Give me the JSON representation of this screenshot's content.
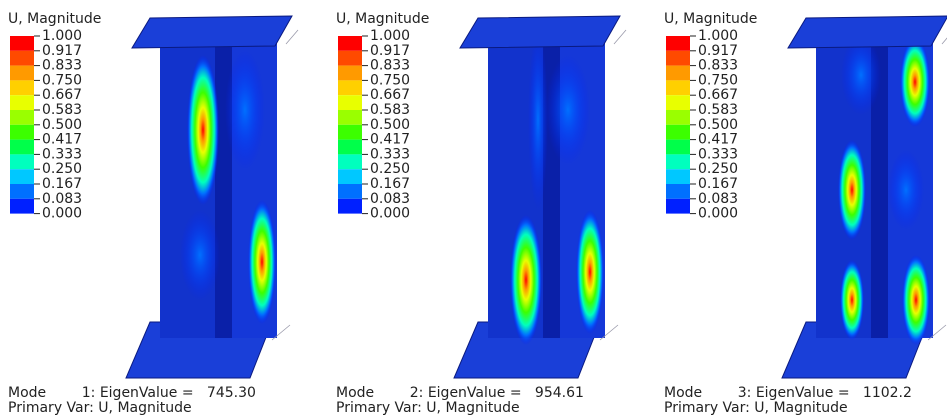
{
  "panels": [
    {
      "legend_title": "U, Magnitude",
      "mode_line": "Mode        1: EigenValue =   745.30",
      "var_line": "Primary Var: U, Magnitude"
    },
    {
      "legend_title": "U, Magnitude",
      "mode_line": "Mode        2: EigenValue =   954.61",
      "var_line": "Primary Var: U, Magnitude"
    },
    {
      "legend_title": "U, Magnitude",
      "mode_line": "Mode        3: EigenValue =   1102.2",
      "var_line": "Primary Var: U, Magnitude"
    }
  ],
  "legend": {
    "labels": [
      "1.000",
      "0.917",
      "0.833",
      "0.750",
      "0.667",
      "0.583",
      "0.500",
      "0.417",
      "0.333",
      "0.250",
      "0.167",
      "0.083",
      "0.000"
    ],
    "colors": [
      "#ff0000",
      "#ff4a00",
      "#ff9a00",
      "#ffd000",
      "#e8ff00",
      "#9aff00",
      "#3cff00",
      "#00ff4a",
      "#00ffbe",
      "#00c8ff",
      "#0070ff",
      "#0020ff"
    ]
  }
}
